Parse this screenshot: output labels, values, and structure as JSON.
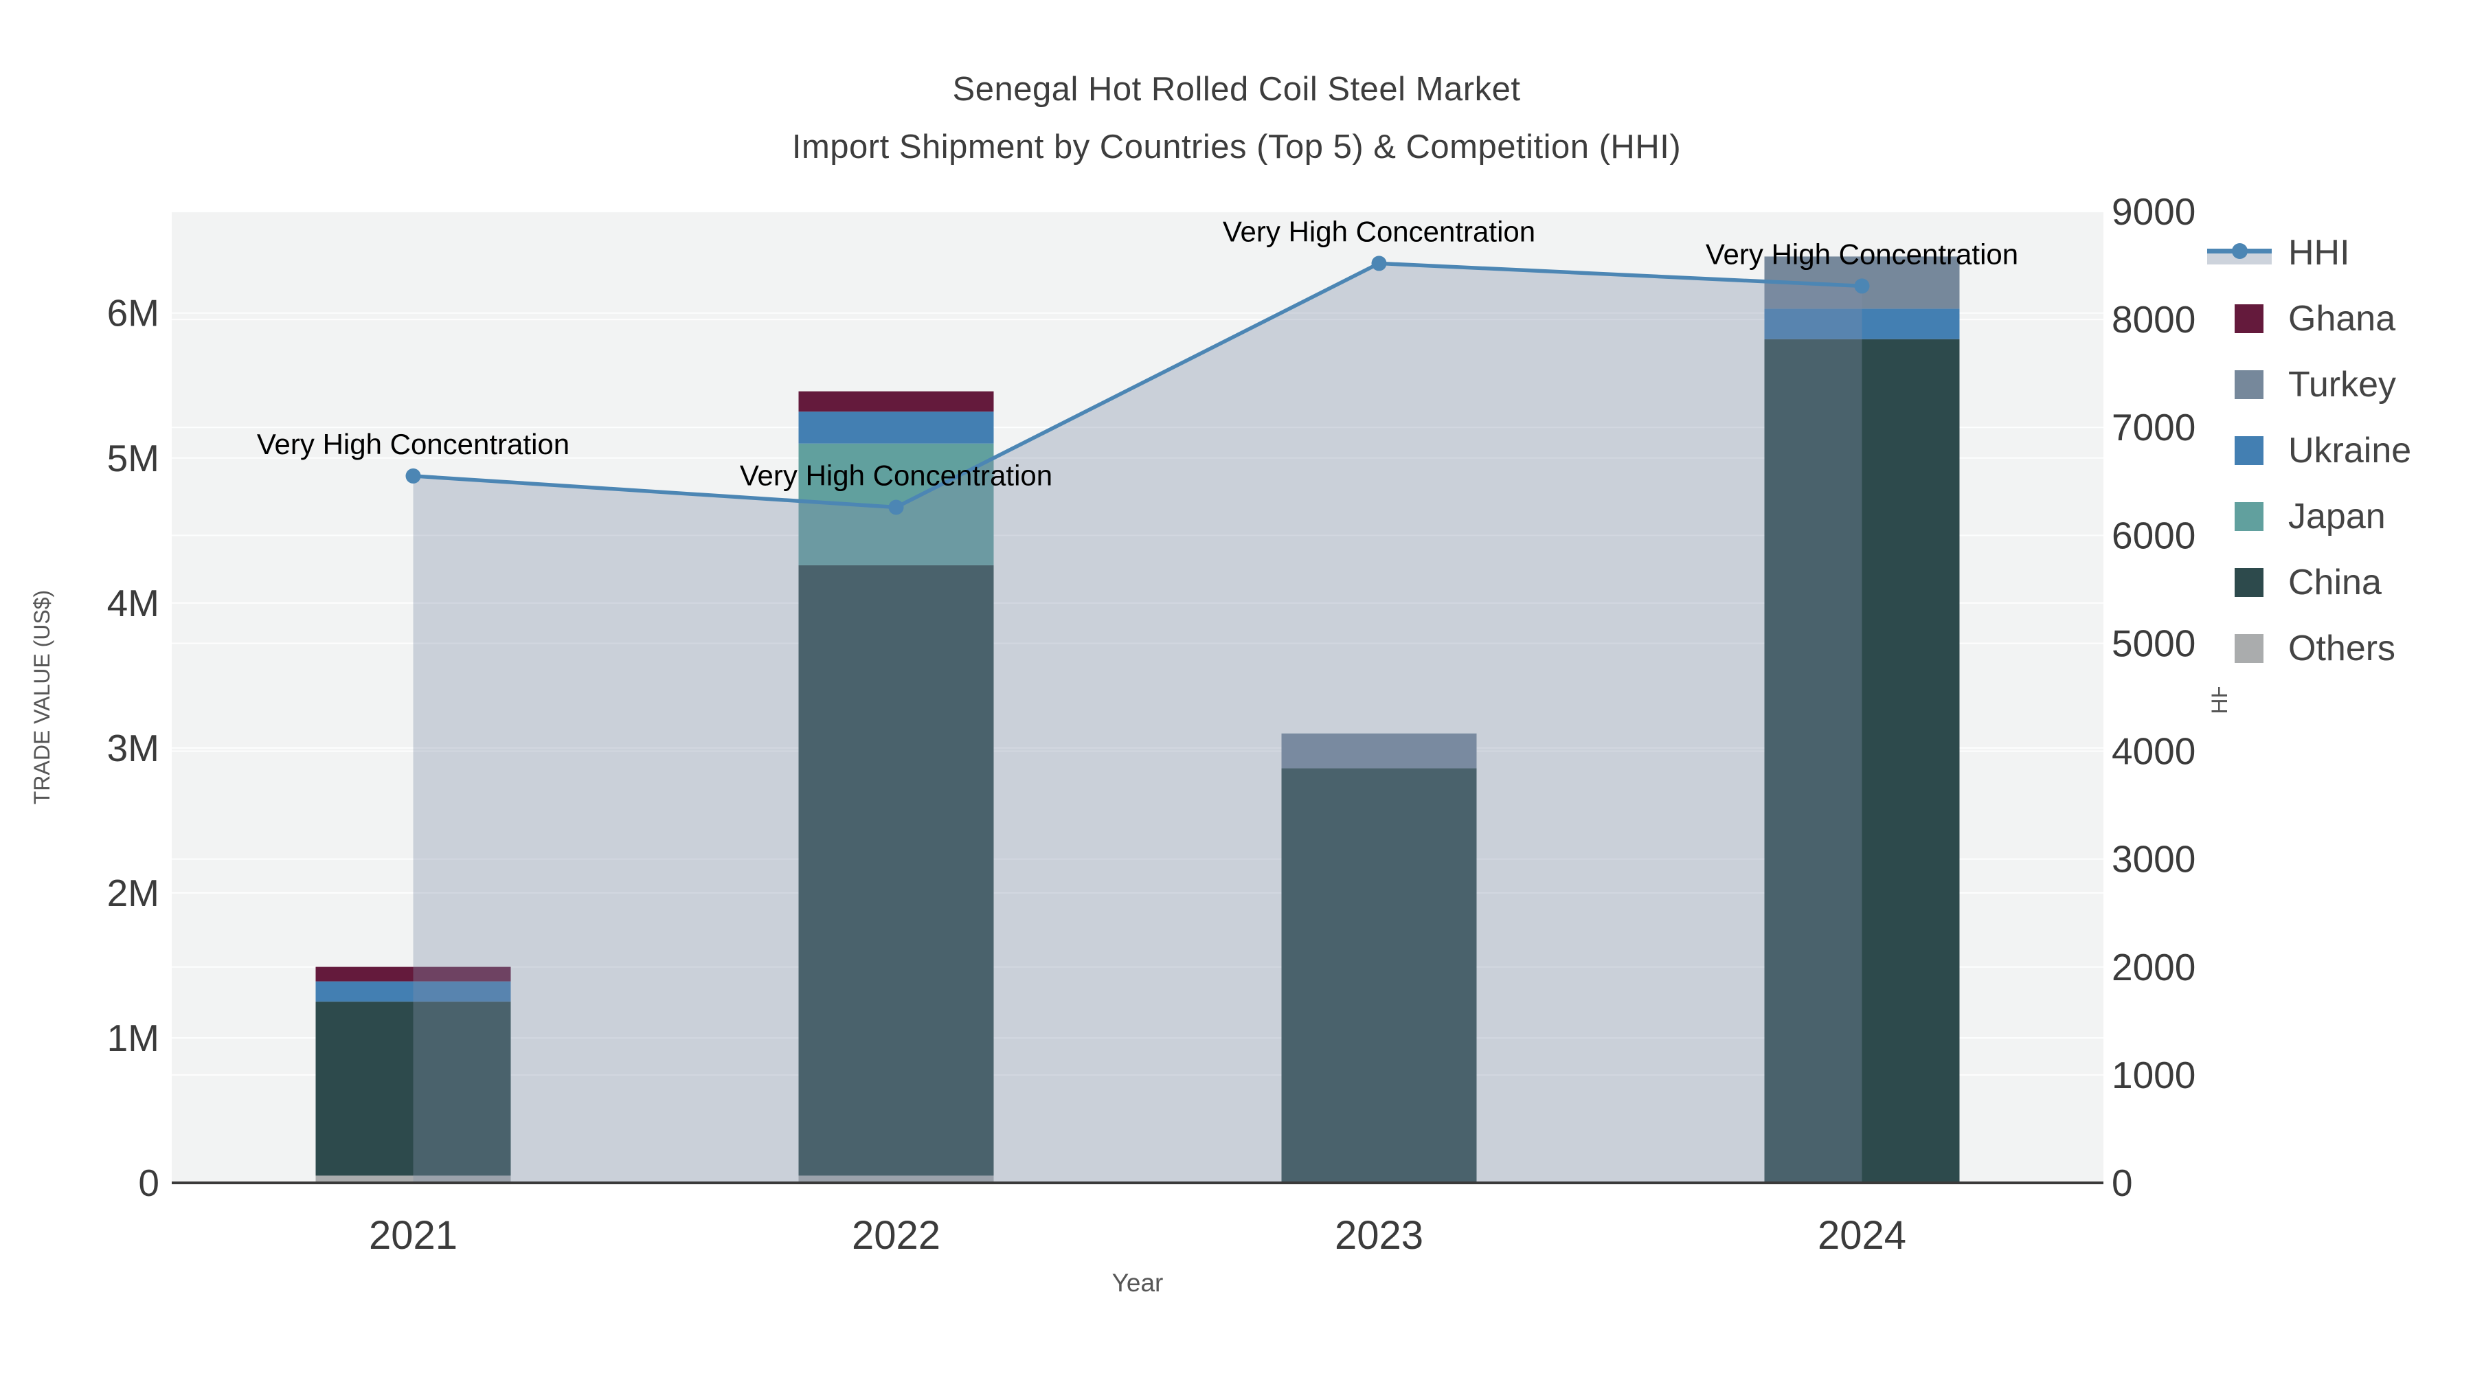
{
  "title": {
    "line1": "Senegal Hot Rolled Coil Steel Market",
    "line2": "Import Shipment by Countries (Top 5) & Competition (HHI)"
  },
  "axes": {
    "x_title": "Year",
    "y_left_title": "TRADE VALUE (US$)",
    "y_right_title": "HHI",
    "x_tick_labels": [
      "2021",
      "2022",
      "2023",
      "2024"
    ],
    "y_left_tick_labels": [
      "0",
      "1M",
      "2M",
      "3M",
      "4M",
      "5M",
      "6M"
    ],
    "y_right_tick_labels": [
      "0",
      "1000",
      "2000",
      "3000",
      "4000",
      "5000",
      "6000",
      "7000",
      "8000",
      "9000"
    ]
  },
  "legend": {
    "items": [
      {
        "label": "HHI",
        "type": "line",
        "color": "#4c86b4"
      },
      {
        "label": "Ghana",
        "type": "swatch",
        "color": "#641a3c"
      },
      {
        "label": "Turkey",
        "type": "swatch",
        "color": "#76889b"
      },
      {
        "label": "Ukraine",
        "type": "swatch",
        "color": "#437fb2"
      },
      {
        "label": "Japan",
        "type": "swatch",
        "color": "#61a09e"
      },
      {
        "label": "China",
        "type": "swatch",
        "color": "#2d4a4c"
      },
      {
        "label": "Others",
        "type": "swatch",
        "color": "#aaacad"
      }
    ]
  },
  "chart_data": {
    "type": "bar+line",
    "title": "Senegal Hot Rolled Coil Steel Market Import Shipment by Countries (Top 5) & Competition (HHI)",
    "categories": [
      "2021",
      "2022",
      "2023",
      "2024"
    ],
    "bar_series": [
      {
        "name": "Others",
        "color": "#aaacad",
        "values": [
          50000,
          50000,
          0,
          0
        ]
      },
      {
        "name": "China",
        "color": "#2d4a4c",
        "values": [
          1200000,
          4210000,
          2860000,
          5820000
        ]
      },
      {
        "name": "Japan",
        "color": "#61a09e",
        "values": [
          0,
          840000,
          0,
          0
        ]
      },
      {
        "name": "Ukraine",
        "color": "#437fb2",
        "values": [
          140000,
          220000,
          0,
          210000
        ]
      },
      {
        "name": "Turkey",
        "color": "#76889b",
        "values": [
          0,
          0,
          240000,
          360000
        ]
      },
      {
        "name": "Ghana",
        "color": "#641a3c",
        "values": [
          100000,
          140000,
          0,
          0
        ]
      }
    ],
    "bar_totals": [
      1490000,
      5460000,
      3100000,
      6390000
    ],
    "line_series": {
      "name": "HHI",
      "color": "#4c86b4",
      "fill_color": "rgba(128,144,170,0.35)",
      "values": [
        6550,
        6260,
        8520,
        8310
      ]
    },
    "annotations": [
      {
        "text": "Very High Concentration",
        "category": "2021"
      },
      {
        "text": "Very High Concentration",
        "category": "2022"
      },
      {
        "text": "Very High Concentration",
        "category": "2023"
      },
      {
        "text": "Very High Concentration",
        "category": "2024"
      }
    ],
    "xlabel": "Year",
    "ylabel": "TRADE VALUE (US$)",
    "ylabel_right": "HHI",
    "ylim_left": [
      0,
      6700000
    ],
    "ylim_right": [
      0,
      9000
    ],
    "grid": true,
    "legend_position": "right",
    "plot_bg": "#f2f3f3",
    "grid_color": "rgba(255,255,255,0.85)",
    "axisline_color": "#3a3a3a",
    "tick_color": "#3b3b3b",
    "annotation_color": "#000000"
  }
}
